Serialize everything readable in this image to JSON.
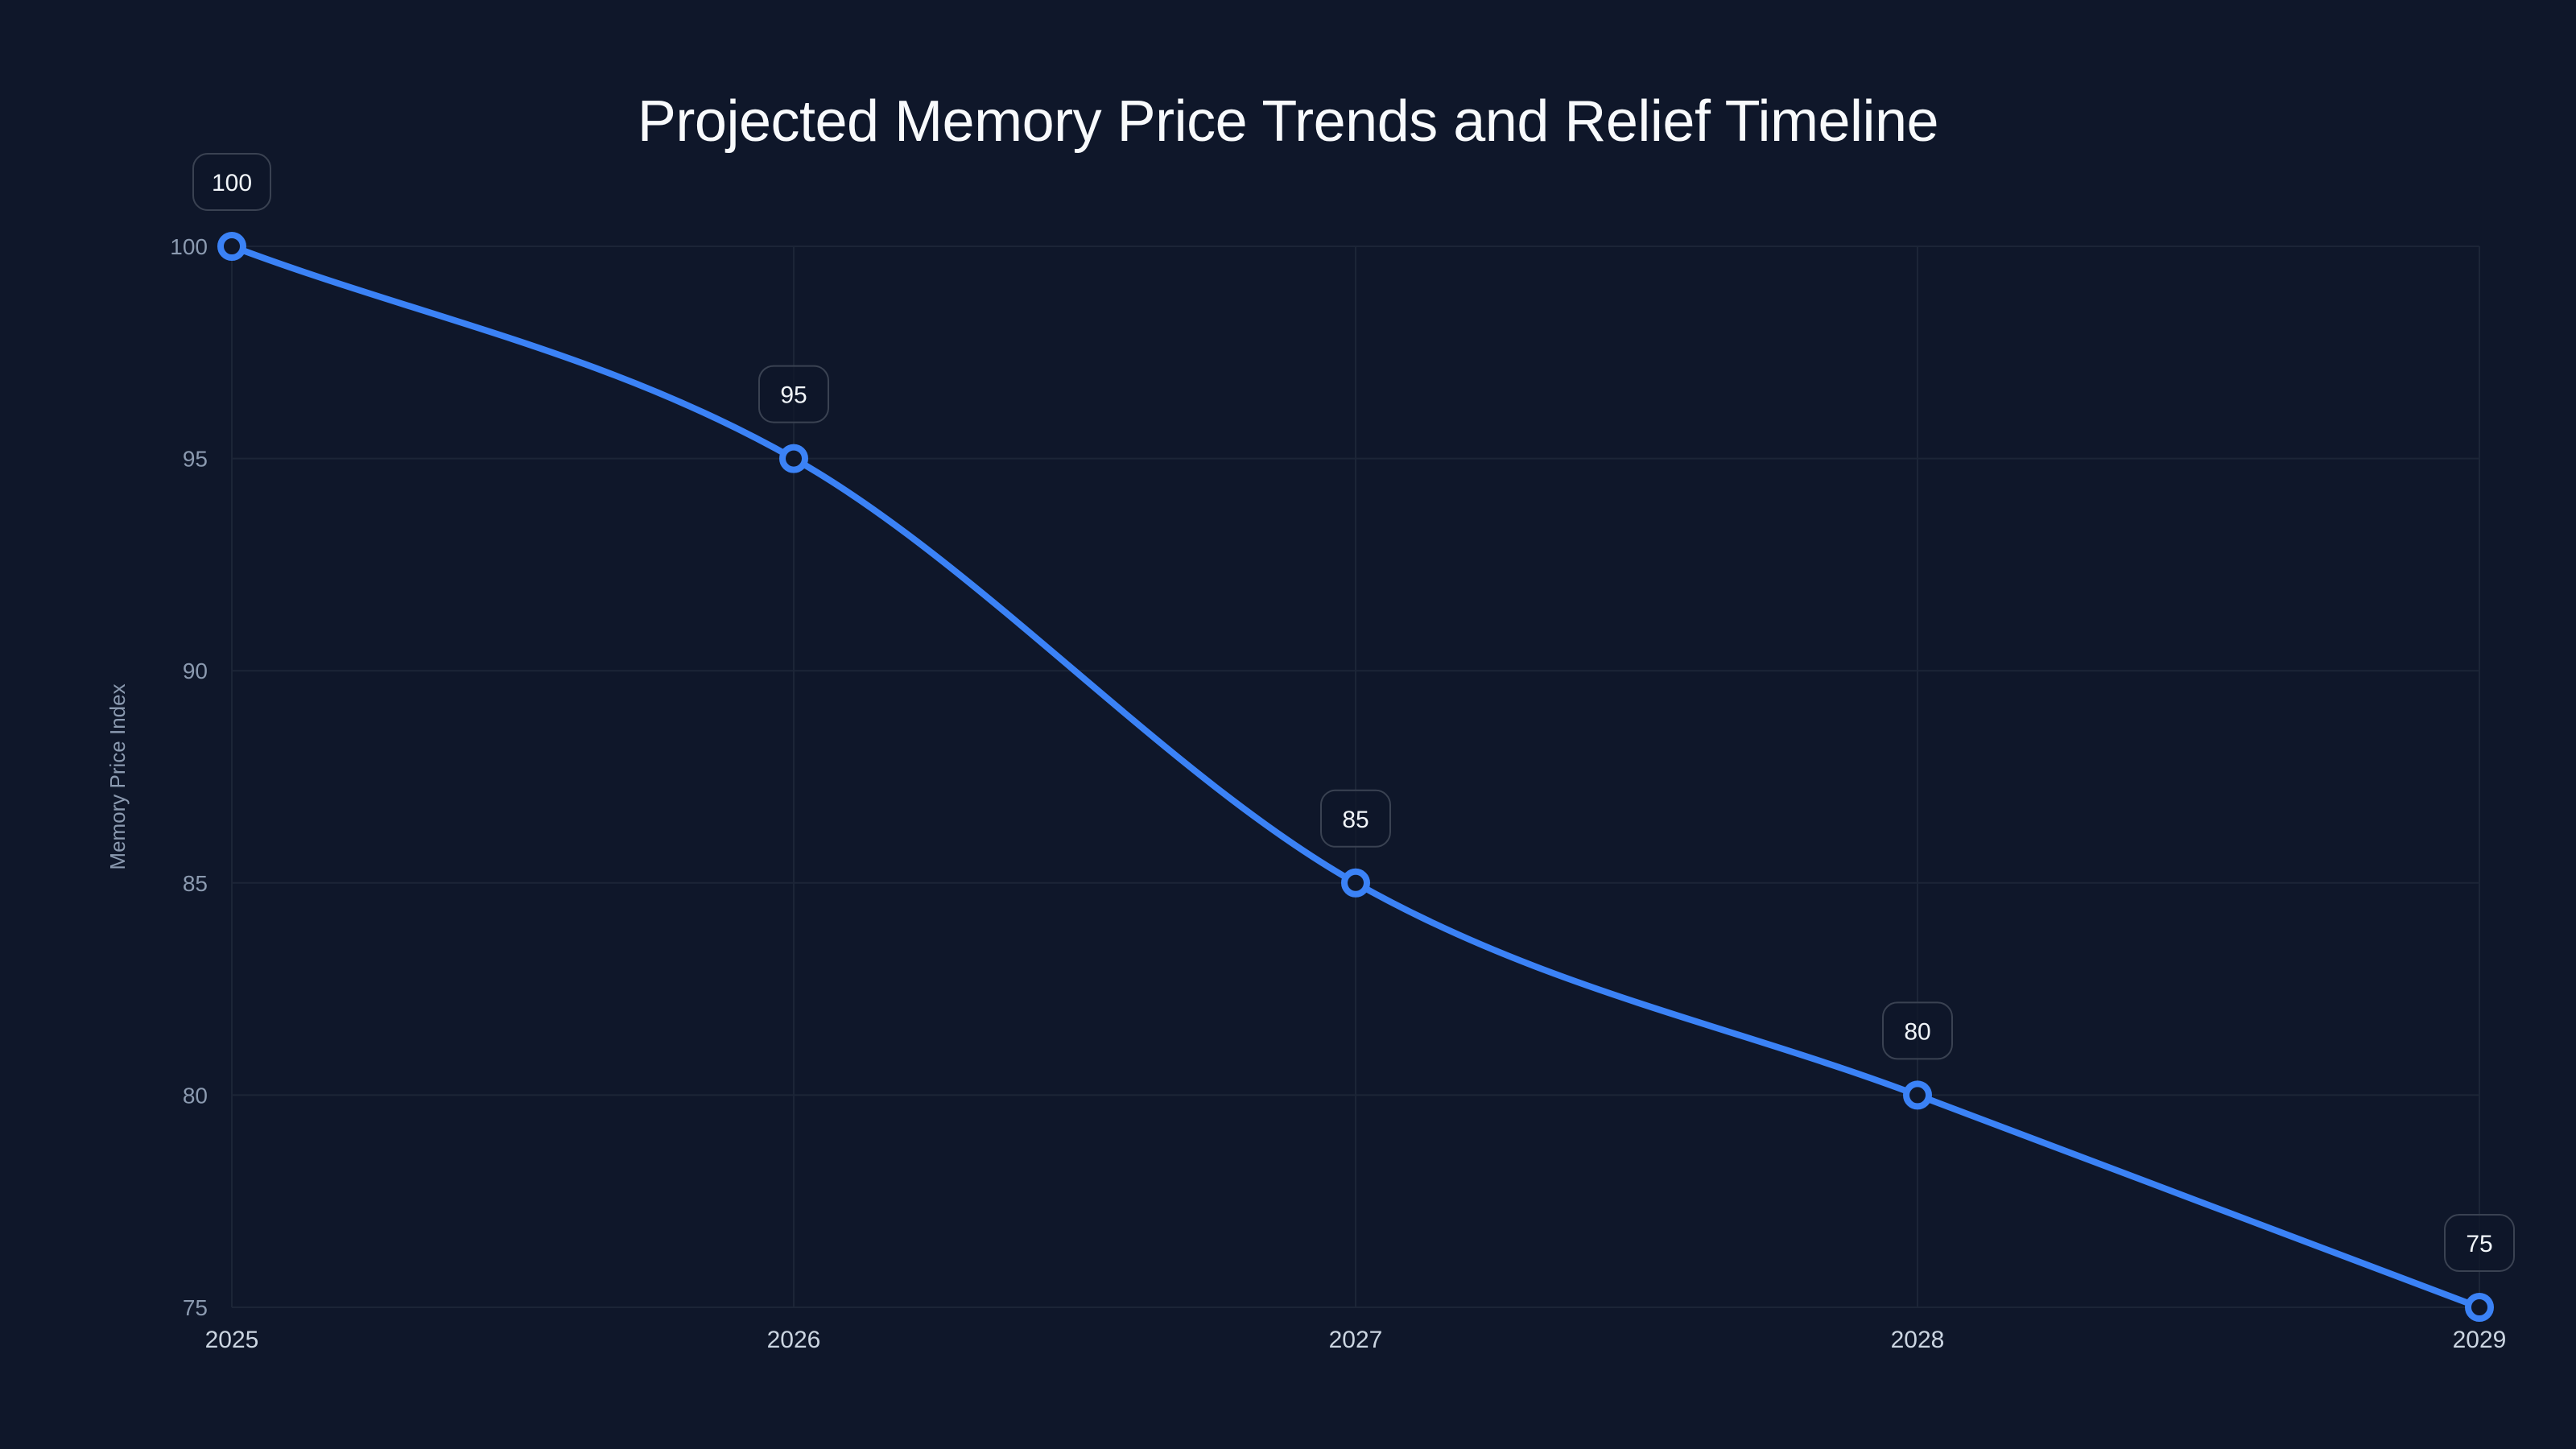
{
  "title": "Projected Memory Price Trends and Relief Timeline",
  "colors": {
    "background": "#0f172a",
    "line": "#3b82f6",
    "grid": "#1c2537",
    "label_border": "#3a4252",
    "label_fill": "rgba(15,23,42,0.75)"
  },
  "chart_data": {
    "type": "line",
    "title": "Projected Memory Price Trends and Relief Timeline",
    "xlabel": "",
    "ylabel": "Memory Price Index",
    "categories": [
      "2025",
      "2026",
      "2027",
      "2028",
      "2029"
    ],
    "series": [
      {
        "name": "Memory Price Index",
        "values": [
          100,
          95,
          85,
          80,
          75
        ]
      }
    ],
    "ylim": [
      75,
      100
    ],
    "yticks": [
      75,
      80,
      85,
      90,
      95,
      100
    ],
    "grid": true,
    "legend": "none",
    "data_labels": true,
    "smooth": true
  }
}
